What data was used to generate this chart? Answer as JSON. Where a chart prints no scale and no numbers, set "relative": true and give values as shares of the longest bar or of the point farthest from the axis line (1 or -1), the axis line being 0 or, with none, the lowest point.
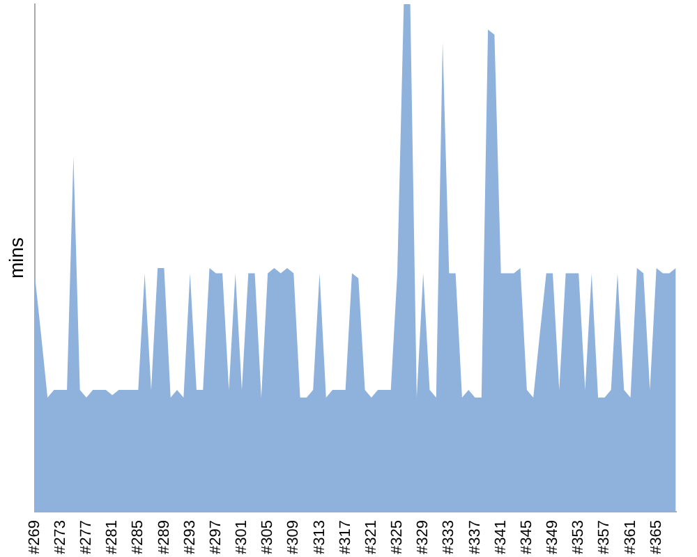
{
  "chart_data": {
    "type": "area",
    "ylabel": "mins",
    "relative": true,
    "grid": false,
    "legend": false,
    "marker": "none",
    "color": "#8fb2dc",
    "categories": [
      "#269",
      null,
      null,
      null,
      "#273",
      null,
      null,
      null,
      "#277",
      null,
      null,
      null,
      "#281",
      null,
      null,
      null,
      "#285",
      null,
      null,
      null,
      "#289",
      null,
      null,
      null,
      "#293",
      null,
      null,
      null,
      "#297",
      null,
      null,
      null,
      "#301",
      null,
      null,
      null,
      "#305",
      null,
      null,
      null,
      "#309",
      null,
      null,
      null,
      "#313",
      null,
      null,
      null,
      "#317",
      null,
      null,
      null,
      "#321",
      null,
      null,
      null,
      "#325",
      null,
      null,
      null,
      "#329",
      null,
      null,
      null,
      "#333",
      null,
      null,
      null,
      "#337",
      null,
      null,
      null,
      "#341",
      null,
      null,
      null,
      "#345",
      null,
      null,
      null,
      "#349",
      null,
      null,
      null,
      "#353",
      null,
      null,
      null,
      "#357",
      null,
      null,
      null,
      "#361",
      null,
      null,
      null,
      "#365",
      null,
      null,
      null
    ],
    "values": [
      0.47,
      0.35,
      0.225,
      0.24,
      0.24,
      0.24,
      0.7,
      0.24,
      0.225,
      0.24,
      0.24,
      0.24,
      0.23,
      0.24,
      0.24,
      0.24,
      0.24,
      0.47,
      0.24,
      0.48,
      0.48,
      0.225,
      0.24,
      0.225,
      0.47,
      0.24,
      0.24,
      0.48,
      0.47,
      0.47,
      0.24,
      0.47,
      0.24,
      0.47,
      0.47,
      0.225,
      0.47,
      0.48,
      0.47,
      0.48,
      0.47,
      0.225,
      0.225,
      0.24,
      0.47,
      0.225,
      0.24,
      0.24,
      0.24,
      0.47,
      0.46,
      0.24,
      0.225,
      0.24,
      0.24,
      0.24,
      0.47,
      1,
      1,
      0.225,
      0.47,
      0.24,
      0.225,
      0.925,
      0.47,
      0.47,
      0.225,
      0.24,
      0.225,
      0.225,
      0.95,
      0.94,
      0.47,
      0.47,
      0.47,
      0.48,
      0.24,
      0.225,
      0.35,
      0.47,
      0.47,
      0.24,
      0.47,
      0.47,
      0.47,
      0.24,
      0.47,
      0.225,
      0.225,
      0.24,
      0.47,
      0.24,
      0.225,
      0.48,
      0.47,
      0.24,
      0.48,
      0.47,
      0.47,
      0.48
    ]
  }
}
